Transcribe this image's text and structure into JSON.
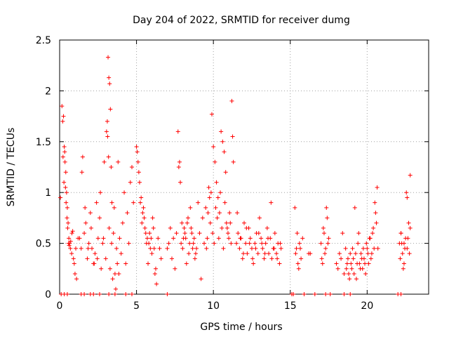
{
  "chart_data": {
    "type": "scatter",
    "title": "Day 204 of 2022, SRMTID for receiver dumg",
    "xlabel": "GPS time / hours",
    "ylabel": "SRMTID / TECUs",
    "xlim": [
      0,
      24
    ],
    "ylim": [
      0,
      2.5
    ],
    "x_ticks": [
      0,
      5,
      10,
      15,
      20
    ],
    "y_ticks": [
      0,
      0.5,
      1,
      1.5,
      2,
      2.5
    ],
    "y_tick_labels": [
      "0",
      "0.5",
      "1",
      "1.5",
      "2",
      "2.5"
    ],
    "grid": true,
    "marker": "+",
    "color": "#ff0000",
    "series": [
      {
        "x": [
          0.05,
          0.15,
          0.2,
          0.25,
          0.3,
          0.35,
          0.4,
          0.45,
          0.5,
          0.55,
          0.6,
          0.65,
          0.7,
          0.8,
          0.9,
          1.0,
          1.1,
          1.2,
          0.22,
          0.28,
          0.33,
          0.38,
          0.42,
          0.48,
          0.52,
          0.58,
          0.62,
          0.72,
          0.78,
          0.85,
          0.95,
          1.05,
          1.3,
          1.4,
          1.5,
          1.6,
          1.7,
          1.8,
          1.9,
          2.0,
          2.1,
          2.2,
          2.3,
          2.4,
          2.5,
          2.6,
          2.7,
          2.8,
          2.9,
          1.45,
          1.65,
          1.85,
          2.05,
          2.25,
          2.45,
          2.65,
          2.85,
          3.0,
          3.05,
          3.1,
          3.15,
          3.2,
          3.25,
          3.3,
          3.35,
          3.4,
          3.5,
          3.6,
          3.7,
          3.8,
          3.9,
          4.0,
          4.1,
          4.2,
          4.3,
          4.4,
          4.5,
          4.6,
          4.7,
          4.8,
          3.12,
          3.18,
          3.22,
          3.28,
          3.38,
          3.45,
          3.55,
          3.65,
          3.75,
          3.85,
          5.0,
          5.1,
          5.2,
          5.3,
          5.4,
          5.5,
          5.6,
          5.7,
          5.8,
          5.9,
          6.0,
          6.1,
          6.2,
          6.3,
          6.4,
          6.5,
          6.6,
          5.05,
          5.15,
          5.25,
          5.35,
          5.45,
          5.55,
          5.65,
          5.75,
          5.85,
          5.95,
          6.05,
          6.15,
          6.25,
          7.0,
          7.1,
          7.2,
          7.3,
          7.4,
          7.5,
          7.6,
          7.7,
          7.8,
          7.9,
          8.0,
          8.1,
          8.2,
          8.3,
          8.4,
          8.5,
          8.6,
          8.7,
          8.8,
          8.9,
          7.75,
          7.85,
          7.95,
          8.05,
          8.15,
          8.25,
          8.35,
          8.45,
          8.55,
          8.65,
          8.75,
          8.85,
          9.0,
          9.1,
          9.2,
          9.3,
          9.4,
          9.5,
          9.6,
          9.7,
          9.8,
          9.9,
          10.0,
          10.1,
          10.2,
          10.3,
          10.4,
          10.5,
          10.6,
          10.7,
          10.8,
          10.9,
          11.0,
          11.1,
          11.2,
          11.3,
          9.55,
          9.65,
          9.75,
          9.85,
          9.95,
          10.05,
          10.15,
          10.25,
          10.35,
          10.45,
          10.55,
          10.65,
          10.75,
          10.85,
          10.95,
          11.05,
          11.15,
          11.25,
          11.5,
          11.6,
          11.7,
          11.8,
          11.9,
          12.0,
          12.1,
          12.2,
          12.3,
          12.4,
          12.5,
          12.6,
          12.7,
          12.8,
          12.9,
          13.0,
          13.1,
          13.2,
          13.3,
          13.4,
          13.5,
          13.6,
          13.7,
          13.8,
          13.9,
          14.0,
          14.1,
          14.2,
          14.3,
          14.4,
          11.55,
          11.75,
          11.95,
          12.15,
          12.35,
          12.55,
          12.75,
          12.95,
          13.15,
          13.35,
          13.55,
          13.75,
          13.95,
          14.15,
          14.35,
          15.3,
          15.4,
          15.5,
          15.6,
          15.7,
          15.8,
          15.35,
          15.45,
          15.55,
          15.65,
          16.2,
          16.3,
          17.0,
          17.1,
          17.2,
          17.3,
          17.4,
          17.5,
          17.05,
          17.15,
          17.25,
          17.35,
          17.45,
          18.0,
          18.1,
          18.2,
          18.3,
          18.4,
          18.5,
          18.6,
          18.7,
          18.8,
          18.9,
          19.0,
          19.1,
          19.2,
          19.3,
          19.4,
          19.5,
          19.6,
          19.7,
          19.8,
          19.9,
          20.0,
          20.1,
          20.2,
          20.3,
          20.4,
          20.5,
          20.6,
          20.7,
          18.65,
          18.75,
          18.85,
          18.95,
          19.05,
          19.15,
          19.25,
          19.35,
          19.45,
          19.55,
          19.65,
          19.75,
          19.85,
          19.95,
          20.05,
          20.15,
          20.25,
          20.35,
          20.45,
          20.55,
          20.65,
          22.1,
          22.2,
          22.3,
          22.4,
          22.5,
          22.6,
          22.7,
          22.8,
          22.15,
          22.25,
          22.35,
          22.45,
          22.55,
          22.65,
          22.75,
          22.2,
          22.4,
          22.6,
          22.8,
          0.1,
          0.3,
          0.5,
          1.4,
          1.6,
          2.0,
          2.2,
          2.6,
          3.2,
          3.6,
          4.3,
          4.7,
          7.0,
          15.1,
          15.2,
          15.9,
          16.6,
          17.3,
          17.6,
          18.5,
          18.9,
          22.0,
          22.2
        ],
        "y": [
          0.95,
          1.85,
          1.7,
          1.75,
          1.45,
          1.3,
          1.2,
          1.0,
          0.85,
          0.7,
          0.55,
          0.5,
          0.45,
          0.6,
          0.35,
          0.2,
          0.15,
          0.55,
          1.35,
          1.1,
          1.4,
          1.05,
          0.9,
          0.75,
          0.65,
          0.5,
          0.48,
          0.52,
          0.4,
          0.62,
          0.3,
          0.45,
          0.55,
          0.45,
          1.35,
          0.6,
          0.7,
          0.35,
          0.5,
          0.8,
          0.45,
          0.3,
          0.4,
          0.9,
          0.55,
          0.75,
          0.25,
          0.5,
          1.3,
          1.2,
          0.85,
          0.45,
          0.65,
          0.3,
          0.35,
          1.0,
          0.55,
          0.35,
          1.6,
          1.7,
          2.33,
          2.13,
          2.07,
          1.82,
          1.25,
          0.9,
          0.6,
          0.2,
          0.45,
          1.3,
          0.55,
          0.4,
          0.7,
          1.0,
          0.3,
          0.8,
          0.5,
          1.1,
          1.25,
          0.9,
          1.55,
          1.35,
          0.65,
          0.25,
          0.5,
          0.15,
          0.85,
          0.05,
          0.3,
          0.2,
          1.45,
          1.3,
          1.1,
          0.95,
          0.8,
          0.75,
          0.6,
          0.55,
          0.5,
          0.45,
          0.4,
          0.65,
          0.2,
          0.1,
          0.55,
          0.45,
          0.35,
          1.4,
          1.2,
          0.9,
          0.7,
          0.85,
          0.65,
          0.5,
          0.3,
          0.6,
          0.55,
          0.75,
          0.45,
          0.25,
          0.45,
          0.5,
          0.65,
          0.35,
          0.55,
          0.25,
          0.6,
          1.6,
          1.3,
          0.5,
          0.45,
          0.65,
          0.55,
          0.7,
          0.4,
          0.85,
          0.6,
          0.5,
          0.35,
          0.45,
          1.25,
          1.1,
          0.7,
          0.55,
          0.6,
          0.3,
          0.75,
          0.5,
          0.65,
          0.45,
          0.55,
          0.4,
          0.9,
          0.6,
          0.15,
          0.75,
          0.5,
          0.85,
          0.55,
          1.05,
          0.7,
          1.77,
          1.45,
          1.3,
          1.1,
          0.95,
          0.8,
          1.6,
          1.5,
          1.4,
          1.2,
          0.65,
          0.55,
          0.7,
          1.9,
          1.3,
          0.45,
          0.8,
          0.95,
          1.0,
          0.6,
          0.5,
          0.85,
          0.75,
          0.55,
          1.0,
          0.65,
          0.45,
          0.9,
          0.7,
          0.6,
          0.8,
          0.5,
          1.55,
          0.5,
          0.6,
          0.45,
          0.55,
          0.35,
          0.7,
          0.5,
          0.4,
          0.65,
          0.55,
          0.45,
          0.3,
          0.5,
          0.6,
          0.4,
          0.75,
          0.55,
          0.45,
          0.35,
          0.5,
          0.65,
          0.4,
          0.55,
          0.35,
          0.45,
          0.6,
          0.4,
          0.5,
          0.3,
          0.45,
          0.8,
          0.55,
          0.4,
          0.65,
          0.5,
          0.35,
          0.45,
          0.6,
          0.5,
          0.4,
          0.55,
          0.9,
          0.45,
          0.35,
          0.5,
          0.85,
          0.45,
          0.3,
          0.5,
          0.35,
          0.55,
          0.4,
          0.6,
          0.25,
          0.45,
          0.4,
          0.4,
          0.5,
          0.3,
          0.6,
          0.45,
          0.75,
          0.55,
          0.35,
          0.65,
          0.4,
          0.85,
          0.5,
          0.3,
          0.25,
          0.4,
          0.35,
          0.6,
          0.2,
          0.45,
          0.3,
          0.2,
          0.4,
          0.25,
          0.35,
          0.85,
          0.15,
          0.5,
          0.3,
          0.4,
          0.25,
          0.35,
          0.2,
          0.45,
          0.3,
          0.55,
          0.4,
          0.65,
          0.9,
          0.7,
          0.45,
          0.25,
          0.35,
          0.15,
          0.3,
          0.45,
          0.2,
          0.4,
          0.3,
          0.6,
          0.25,
          0.35,
          0.45,
          0.3,
          0.5,
          0.4,
          0.55,
          0.35,
          0.6,
          0.45,
          0.8,
          1.05,
          0.5,
          0.6,
          0.4,
          0.3,
          0.55,
          0.45,
          0.7,
          0.65,
          0.35,
          0.5,
          0.25,
          0.45,
          1.0,
          0.55,
          0.4,
          0.6,
          0.5,
          0.95,
          1.17,
          0,
          0,
          0,
          0,
          0,
          0,
          0,
          0,
          0,
          0,
          0,
          0,
          0,
          0,
          0,
          0,
          0,
          0,
          0,
          0,
          0,
          0,
          0
        ]
      }
    ]
  }
}
